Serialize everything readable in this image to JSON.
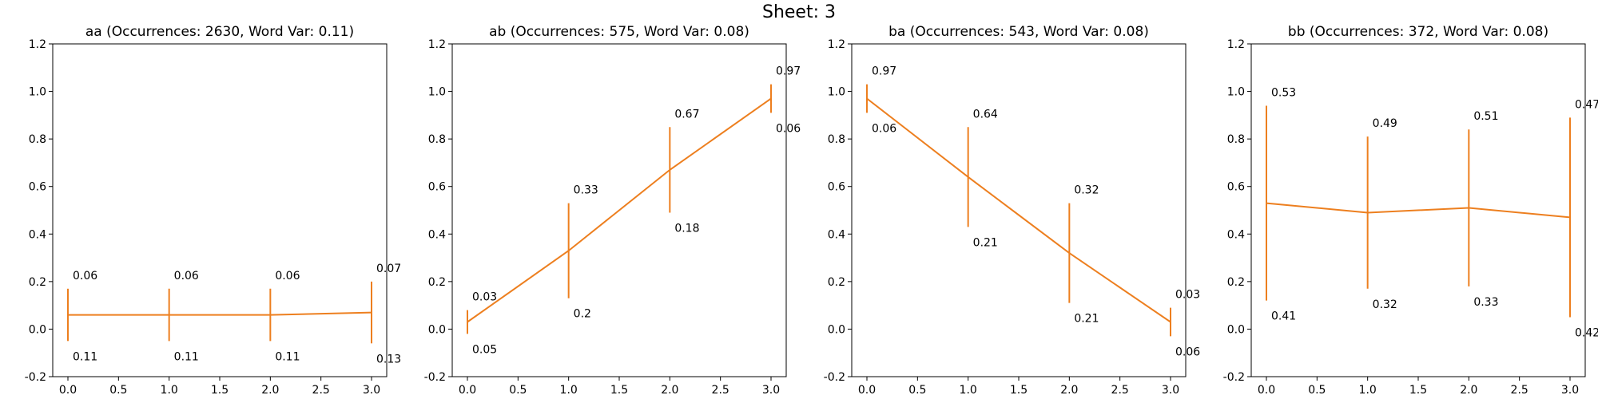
{
  "sheet_title": "Sheet: 3",
  "colors": {
    "series": "#ed7f1f",
    "axis": "#000000",
    "background": "#ffffff"
  },
  "chart_data": [
    {
      "type": "line",
      "title": "aa (Occurrences: 2630, Word Var: 0.11)",
      "x": [
        0,
        1,
        2,
        3
      ],
      "y": [
        0.06,
        0.06,
        0.06,
        0.07
      ],
      "err_up": [
        0.11,
        0.11,
        0.11,
        0.13
      ],
      "err_down": [
        0.11,
        0.11,
        0.11,
        0.13
      ],
      "labels_above": [
        "0.06",
        "0.06",
        "0.06",
        "0.07"
      ],
      "labels_below": [
        "0.11",
        "0.11",
        "0.11",
        "0.13"
      ],
      "xlim": [
        -0.15,
        3.15
      ],
      "ylim": [
        -0.2,
        1.2
      ],
      "xticks": [
        "0.0",
        "0.5",
        "1.0",
        "1.5",
        "2.0",
        "2.5",
        "3.0"
      ],
      "yticks": [
        "-0.2",
        "0.0",
        "0.2",
        "0.4",
        "0.6",
        "0.8",
        "1.0",
        "1.2"
      ],
      "grid": false
    },
    {
      "type": "line",
      "title": "ab (Occurrences: 575, Word Var: 0.08)",
      "x": [
        0,
        1,
        2,
        3
      ],
      "y": [
        0.03,
        0.33,
        0.67,
        0.97
      ],
      "err_up": [
        0.05,
        0.2,
        0.18,
        0.06
      ],
      "err_down": [
        0.05,
        0.2,
        0.18,
        0.06
      ],
      "labels_above": [
        "0.03",
        "0.33",
        "0.67",
        "0.97"
      ],
      "labels_below": [
        "0.05",
        "0.2",
        "0.18",
        "0.06"
      ],
      "xlim": [
        -0.15,
        3.15
      ],
      "ylim": [
        -0.2,
        1.2
      ],
      "xticks": [
        "0.0",
        "0.5",
        "1.0",
        "1.5",
        "2.0",
        "2.5",
        "3.0"
      ],
      "yticks": [
        "-0.2",
        "0.0",
        "0.2",
        "0.4",
        "0.6",
        "0.8",
        "1.0",
        "1.2"
      ],
      "grid": false
    },
    {
      "type": "line",
      "title": "ba (Occurrences: 543, Word Var: 0.08)",
      "x": [
        0,
        1,
        2,
        3
      ],
      "y": [
        0.97,
        0.64,
        0.32,
        0.03
      ],
      "err_up": [
        0.06,
        0.21,
        0.21,
        0.06
      ],
      "err_down": [
        0.06,
        0.21,
        0.21,
        0.06
      ],
      "labels_above": [
        "0.97",
        "0.64",
        "0.32",
        "0.03"
      ],
      "labels_below": [
        "0.06",
        "0.21",
        "0.21",
        "0.06"
      ],
      "xlim": [
        -0.15,
        3.15
      ],
      "ylim": [
        -0.2,
        1.2
      ],
      "xticks": [
        "0.0",
        "0.5",
        "1.0",
        "1.5",
        "2.0",
        "2.5",
        "3.0"
      ],
      "yticks": [
        "-0.2",
        "0.0",
        "0.2",
        "0.4",
        "0.6",
        "0.8",
        "1.0",
        "1.2"
      ],
      "grid": false
    },
    {
      "type": "line",
      "title": "bb (Occurrences: 372, Word Var: 0.08)",
      "x": [
        0,
        1,
        2,
        3
      ],
      "y": [
        0.53,
        0.49,
        0.51,
        0.47
      ],
      "err_up": [
        0.41,
        0.32,
        0.33,
        0.42
      ],
      "err_down": [
        0.41,
        0.32,
        0.33,
        0.42
      ],
      "labels_above": [
        "0.53",
        "0.49",
        "0.51",
        "0.47"
      ],
      "labels_below": [
        "0.41",
        "0.32",
        "0.33",
        "0.42"
      ],
      "xlim": [
        -0.15,
        3.15
      ],
      "ylim": [
        -0.2,
        1.2
      ],
      "xticks": [
        "0.0",
        "0.5",
        "1.0",
        "1.5",
        "2.0",
        "2.5",
        "3.0"
      ],
      "yticks": [
        "-0.2",
        "0.0",
        "0.2",
        "0.4",
        "0.6",
        "0.8",
        "1.0",
        "1.2"
      ],
      "grid": false
    }
  ]
}
